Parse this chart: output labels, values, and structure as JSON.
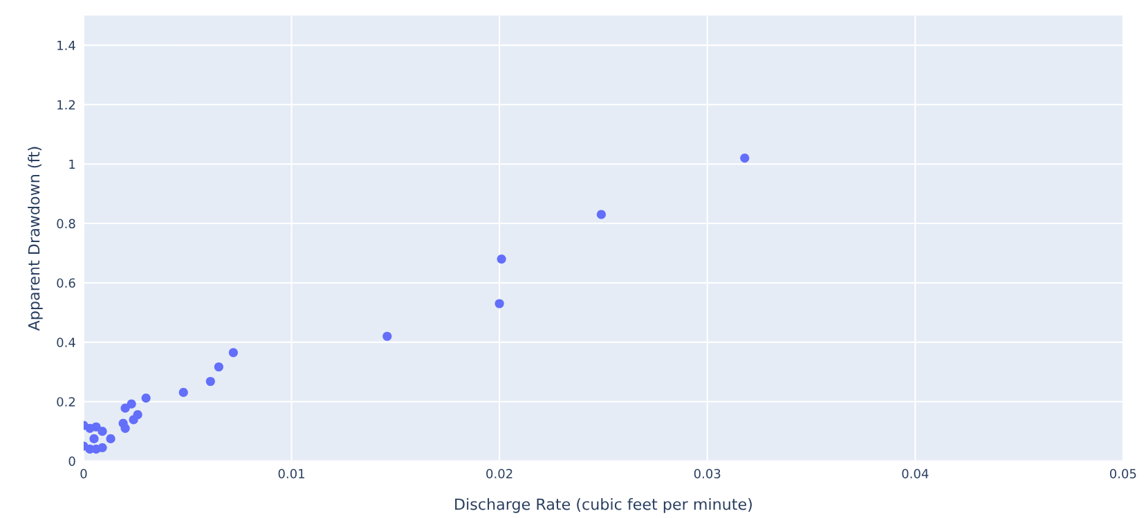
{
  "chart_data": {
    "type": "scatter",
    "xlabel": "Discharge Rate (cubic feet per minute)",
    "ylabel": "Apparent Drawdown (ft)",
    "x": [
      0.0318,
      0.0249,
      0.0201,
      0.02,
      0.0146,
      0.0072,
      0.0065,
      0.0061,
      0.0048,
      0.003,
      0.0023,
      0.002,
      0.0026,
      0.0024,
      0.0019,
      0.002,
      0.0013,
      0,
      0,
      0.0003,
      0.0006,
      0.0009,
      0.0009,
      0.0006,
      0.0003,
      0.0005
    ],
    "series": [
      {
        "color": "#636efa",
        "values": [
          1.02,
          0.83,
          0.68,
          0.53,
          0.42,
          0.365,
          0.317,
          0.268,
          0.231,
          0.212,
          0.192,
          0.178,
          0.156,
          0.139,
          0.127,
          0.11,
          0.075,
          0.12,
          0.05,
          0.04,
          0.04,
          0.045,
          0.1,
          0.115,
          0.11,
          0.075
        ]
      }
    ],
    "xlim": [
      0,
      0.05
    ],
    "ylim": [
      0,
      1.5
    ],
    "xticks": [
      0,
      0.01,
      0.02,
      0.03,
      0.04,
      0.05
    ],
    "yticks": [
      0,
      0.2,
      0.4,
      0.6,
      0.8,
      1,
      1.2,
      1.4
    ],
    "grid": true,
    "marker": "circle"
  }
}
